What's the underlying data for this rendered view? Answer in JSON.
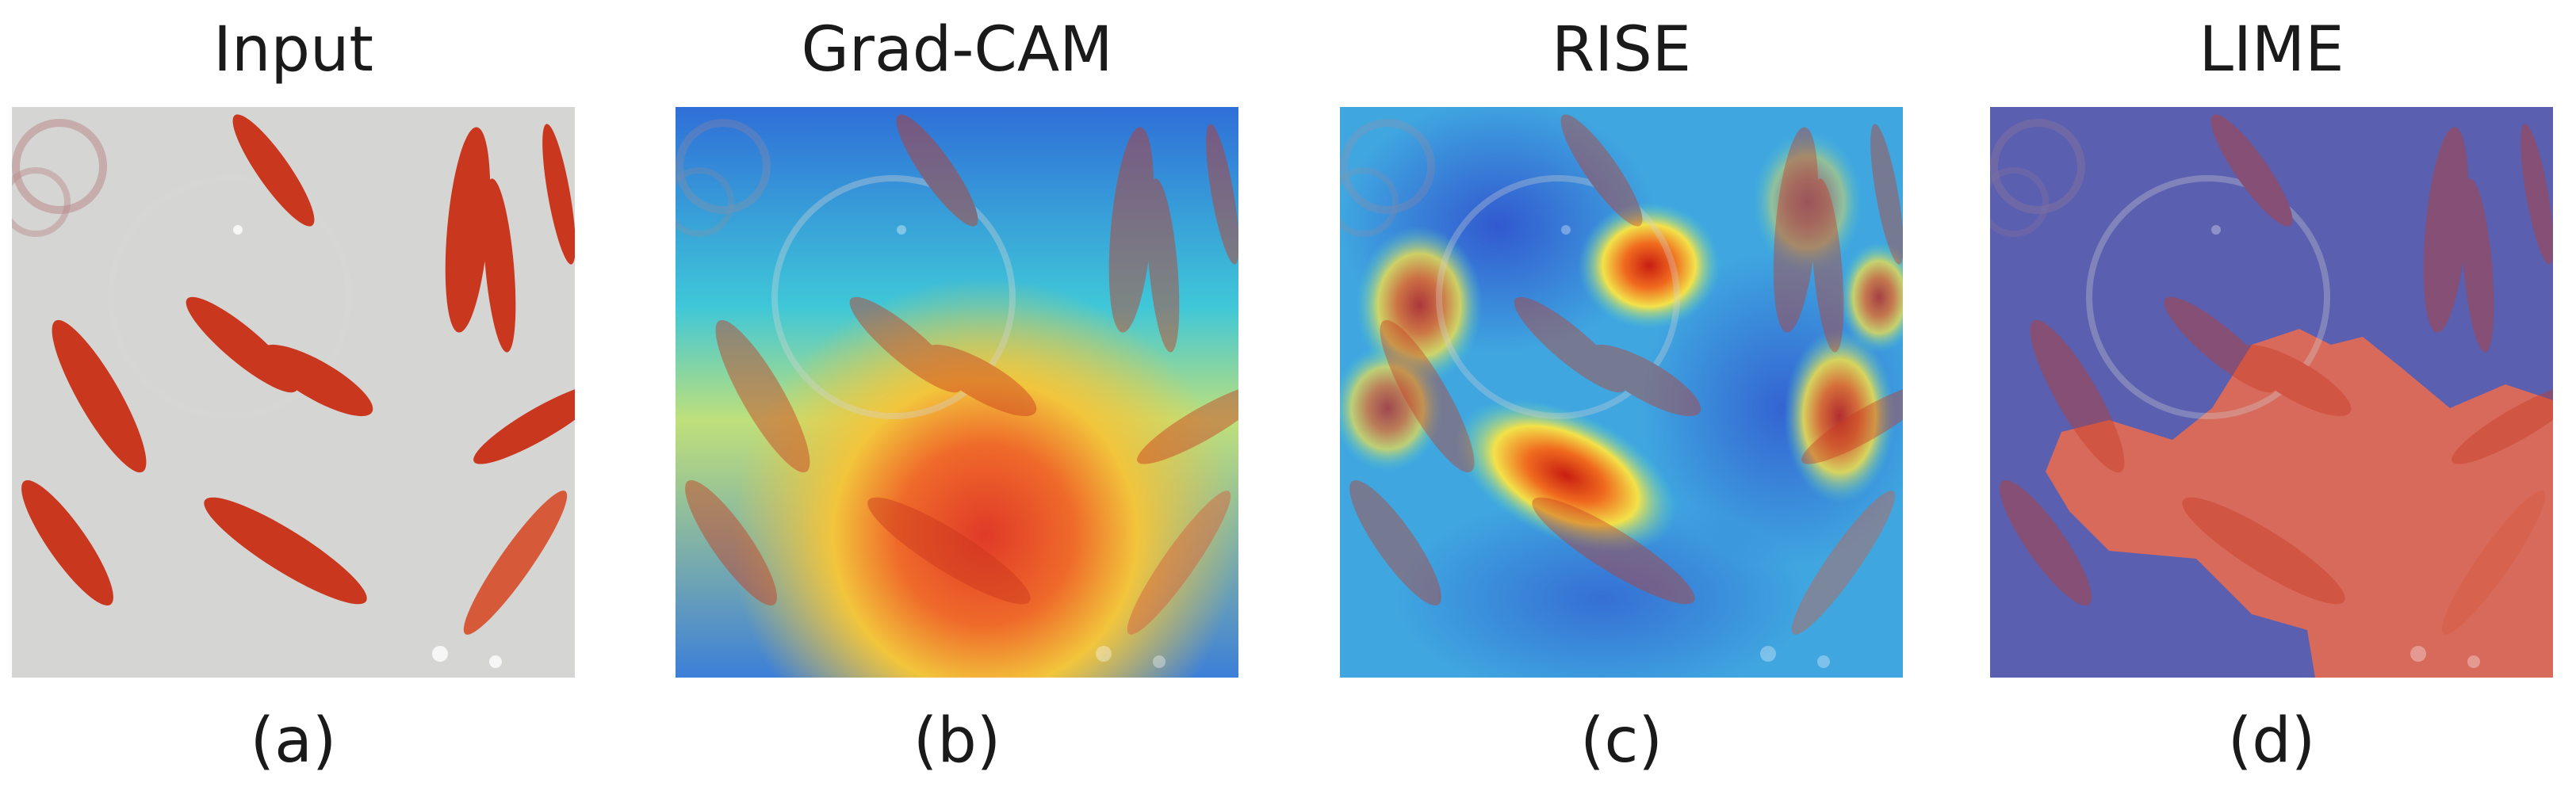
{
  "panels": [
    {
      "title": "Input",
      "caption": "(a)"
    },
    {
      "title": "Grad-CAM",
      "caption": "(b)"
    },
    {
      "title": "RISE",
      "caption": "(c)"
    },
    {
      "title": "LIME",
      "caption": "(d)"
    }
  ]
}
